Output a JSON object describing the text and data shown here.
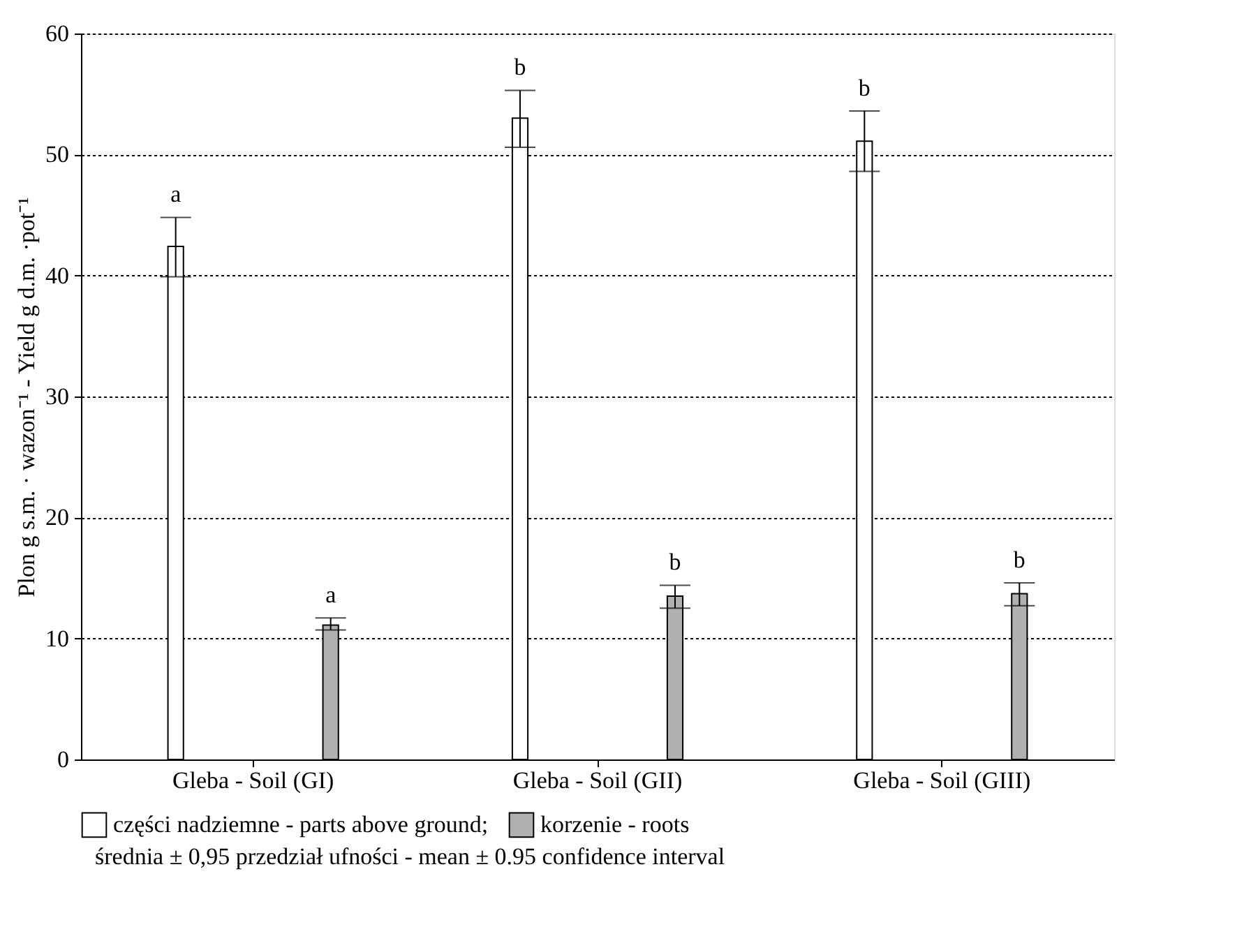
{
  "chart_data": {
    "type": "bar",
    "ylabel": "Plon  g s.m. · wazon⁻¹ - Yield  g d.m. ·pot⁻¹",
    "categories": [
      "Gleba - Soil (GI)",
      "Gleba - Soil (GII)",
      "Gleba - Soil (GIII)"
    ],
    "series": [
      {
        "name": "części nadziemne - parts above ground;",
        "color": "#ffffff",
        "values": [
          42.4,
          53.0,
          51.1
        ],
        "errors": [
          [
            39.9,
            44.8
          ],
          [
            50.6,
            55.3
          ],
          [
            48.6,
            53.6
          ]
        ],
        "value_labels": [
          "a",
          "b",
          "b"
        ]
      },
      {
        "name": "korzenie - roots",
        "color": "#b0b0b0",
        "values": [
          11.1,
          13.5,
          13.7
        ],
        "errors": [
          [
            10.7,
            11.7
          ],
          [
            12.5,
            14.4
          ],
          [
            12.7,
            14.6
          ]
        ],
        "value_labels": [
          "a",
          "b",
          "b"
        ]
      }
    ],
    "ylim": [
      0,
      60
    ],
    "yticks": [
      0,
      10,
      20,
      30,
      40,
      50,
      60
    ],
    "grid": "y",
    "legend": "bottom",
    "annotations": [
      "średnia ± 0,95 przedział ufności - mean ± 0.95 confidence interval"
    ]
  }
}
